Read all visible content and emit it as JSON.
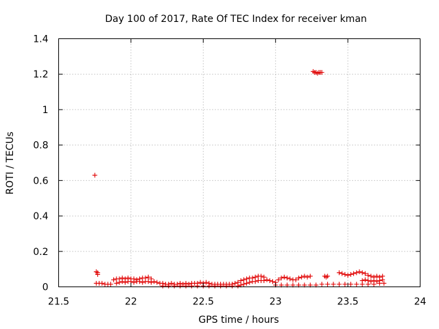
{
  "chart_data": {
    "type": "scatter",
    "title": "Day 100 of 2017, Rate Of TEC Index for receiver kman",
    "xlabel": "GPS time / hours",
    "ylabel": "ROTI / TECUs",
    "xlim": [
      21.5,
      24
    ],
    "ylim": [
      0,
      1.4
    ],
    "xticks": [
      21.5,
      22,
      22.5,
      23,
      23.5,
      24
    ],
    "yticks": [
      0,
      0.2,
      0.4,
      0.6,
      0.8,
      1,
      1.2,
      1.4
    ],
    "xtick_labels": [
      "21.5",
      "22",
      "22.5",
      "23",
      "23.5",
      "24"
    ],
    "ytick_labels": [
      "0",
      "0.2",
      "0.4",
      "0.6",
      "0.8",
      "1",
      "1.2",
      "1.4"
    ],
    "grid": true,
    "marker": "plus",
    "color": "#e00000",
    "series": [
      {
        "points": [
          [
            21.75,
            0.63
          ],
          [
            21.76,
            0.085
          ],
          [
            21.77,
            0.07
          ],
          [
            21.77,
            0.08
          ],
          [
            21.76,
            0.02
          ],
          [
            21.78,
            0.02
          ],
          [
            21.8,
            0.02
          ],
          [
            21.82,
            0.015
          ],
          [
            21.84,
            0.015
          ],
          [
            21.86,
            0.015
          ],
          [
            21.88,
            0.04
          ],
          [
            21.9,
            0.045
          ],
          [
            21.92,
            0.045
          ],
          [
            21.94,
            0.05
          ],
          [
            21.96,
            0.045
          ],
          [
            21.98,
            0.05
          ],
          [
            22.0,
            0.045
          ],
          [
            22.02,
            0.045
          ],
          [
            22.04,
            0.04
          ],
          [
            22.06,
            0.045
          ],
          [
            22.08,
            0.05
          ],
          [
            22.1,
            0.05
          ],
          [
            22.12,
            0.055
          ],
          [
            22.14,
            0.045
          ],
          [
            21.9,
            0.02
          ],
          [
            21.92,
            0.025
          ],
          [
            21.94,
            0.03
          ],
          [
            21.96,
            0.025
          ],
          [
            21.98,
            0.03
          ],
          [
            22.0,
            0.03
          ],
          [
            22.02,
            0.025
          ],
          [
            22.04,
            0.03
          ],
          [
            22.06,
            0.03
          ],
          [
            22.08,
            0.025
          ],
          [
            22.1,
            0.03
          ],
          [
            22.12,
            0.03
          ],
          [
            22.14,
            0.025
          ],
          [
            22.16,
            0.03
          ],
          [
            22.18,
            0.025
          ],
          [
            22.2,
            0.02
          ],
          [
            22.22,
            0.02
          ],
          [
            22.24,
            0.015
          ],
          [
            22.26,
            0.015
          ],
          [
            22.28,
            0.02
          ],
          [
            22.3,
            0.015
          ],
          [
            22.32,
            0.015
          ],
          [
            22.34,
            0.02
          ],
          [
            22.36,
            0.015
          ],
          [
            22.38,
            0.02
          ],
          [
            22.4,
            0.015
          ],
          [
            22.42,
            0.02
          ],
          [
            22.44,
            0.02
          ],
          [
            22.46,
            0.02
          ],
          [
            22.48,
            0.025
          ],
          [
            22.5,
            0.02
          ],
          [
            22.52,
            0.025
          ],
          [
            22.54,
            0.02
          ],
          [
            22.22,
            0.005
          ],
          [
            22.26,
            0.005
          ],
          [
            22.3,
            0.005
          ],
          [
            22.34,
            0.005
          ],
          [
            22.38,
            0.005
          ],
          [
            22.42,
            0.005
          ],
          [
            22.46,
            0.005
          ],
          [
            22.5,
            0.005
          ],
          [
            22.54,
            0.005
          ],
          [
            22.58,
            0.005
          ],
          [
            22.62,
            0.005
          ],
          [
            22.66,
            0.005
          ],
          [
            22.7,
            0.005
          ],
          [
            22.74,
            0.005
          ],
          [
            22.56,
            0.015
          ],
          [
            22.58,
            0.015
          ],
          [
            22.6,
            0.015
          ],
          [
            22.62,
            0.015
          ],
          [
            22.64,
            0.015
          ],
          [
            22.66,
            0.015
          ],
          [
            22.68,
            0.015
          ],
          [
            22.7,
            0.015
          ],
          [
            22.72,
            0.02
          ],
          [
            22.74,
            0.025
          ],
          [
            22.76,
            0.035
          ],
          [
            22.78,
            0.04
          ],
          [
            22.8,
            0.045
          ],
          [
            22.82,
            0.05
          ],
          [
            22.84,
            0.05
          ],
          [
            22.86,
            0.055
          ],
          [
            22.88,
            0.06
          ],
          [
            22.9,
            0.06
          ],
          [
            22.92,
            0.055
          ],
          [
            22.76,
            0.01
          ],
          [
            22.78,
            0.015
          ],
          [
            22.8,
            0.02
          ],
          [
            22.82,
            0.025
          ],
          [
            22.84,
            0.03
          ],
          [
            22.86,
            0.03
          ],
          [
            22.88,
            0.035
          ],
          [
            22.9,
            0.035
          ],
          [
            22.92,
            0.035
          ],
          [
            22.94,
            0.04
          ],
          [
            22.96,
            0.035
          ],
          [
            22.98,
            0.03
          ],
          [
            23.0,
            0.025
          ],
          [
            23.02,
            0.04
          ],
          [
            23.04,
            0.05
          ],
          [
            23.06,
            0.055
          ],
          [
            23.08,
            0.05
          ],
          [
            23.1,
            0.045
          ],
          [
            23.12,
            0.04
          ],
          [
            23.14,
            0.04
          ],
          [
            23.16,
            0.05
          ],
          [
            23.18,
            0.055
          ],
          [
            23.2,
            0.06
          ],
          [
            23.22,
            0.055
          ],
          [
            23.24,
            0.06
          ],
          [
            23.0,
            0.01
          ],
          [
            23.04,
            0.01
          ],
          [
            23.08,
            0.01
          ],
          [
            23.12,
            0.01
          ],
          [
            23.16,
            0.01
          ],
          [
            23.2,
            0.01
          ],
          [
            23.24,
            0.01
          ],
          [
            23.28,
            0.01
          ],
          [
            23.32,
            0.015
          ],
          [
            23.36,
            0.015
          ],
          [
            23.4,
            0.015
          ],
          [
            23.44,
            0.015
          ],
          [
            23.48,
            0.015
          ],
          [
            23.52,
            0.015
          ],
          [
            23.56,
            0.015
          ],
          [
            23.6,
            0.015
          ],
          [
            23.64,
            0.015
          ],
          [
            23.68,
            0.015
          ],
          [
            23.72,
            0.02
          ],
          [
            23.75,
            0.02
          ],
          [
            23.26,
            1.215
          ],
          [
            23.27,
            1.21
          ],
          [
            23.28,
            1.21
          ],
          [
            23.29,
            1.205
          ],
          [
            23.3,
            1.21
          ],
          [
            23.31,
            1.21
          ],
          [
            23.32,
            1.21
          ],
          [
            23.34,
            0.06
          ],
          [
            23.35,
            0.055
          ],
          [
            23.36,
            0.06
          ],
          [
            23.44,
            0.08
          ],
          [
            23.46,
            0.075
          ],
          [
            23.48,
            0.07
          ],
          [
            23.5,
            0.065
          ],
          [
            23.52,
            0.07
          ],
          [
            23.54,
            0.075
          ],
          [
            23.56,
            0.08
          ],
          [
            23.58,
            0.085
          ],
          [
            23.6,
            0.08
          ],
          [
            23.62,
            0.075
          ],
          [
            23.64,
            0.065
          ],
          [
            23.66,
            0.06
          ],
          [
            23.68,
            0.055
          ],
          [
            23.7,
            0.06
          ],
          [
            23.72,
            0.055
          ],
          [
            23.74,
            0.06
          ],
          [
            23.6,
            0.035
          ],
          [
            23.62,
            0.04
          ],
          [
            23.64,
            0.035
          ],
          [
            23.66,
            0.03
          ],
          [
            23.68,
            0.035
          ],
          [
            23.7,
            0.03
          ],
          [
            23.72,
            0.035
          ],
          [
            23.74,
            0.04
          ]
        ]
      }
    ]
  }
}
